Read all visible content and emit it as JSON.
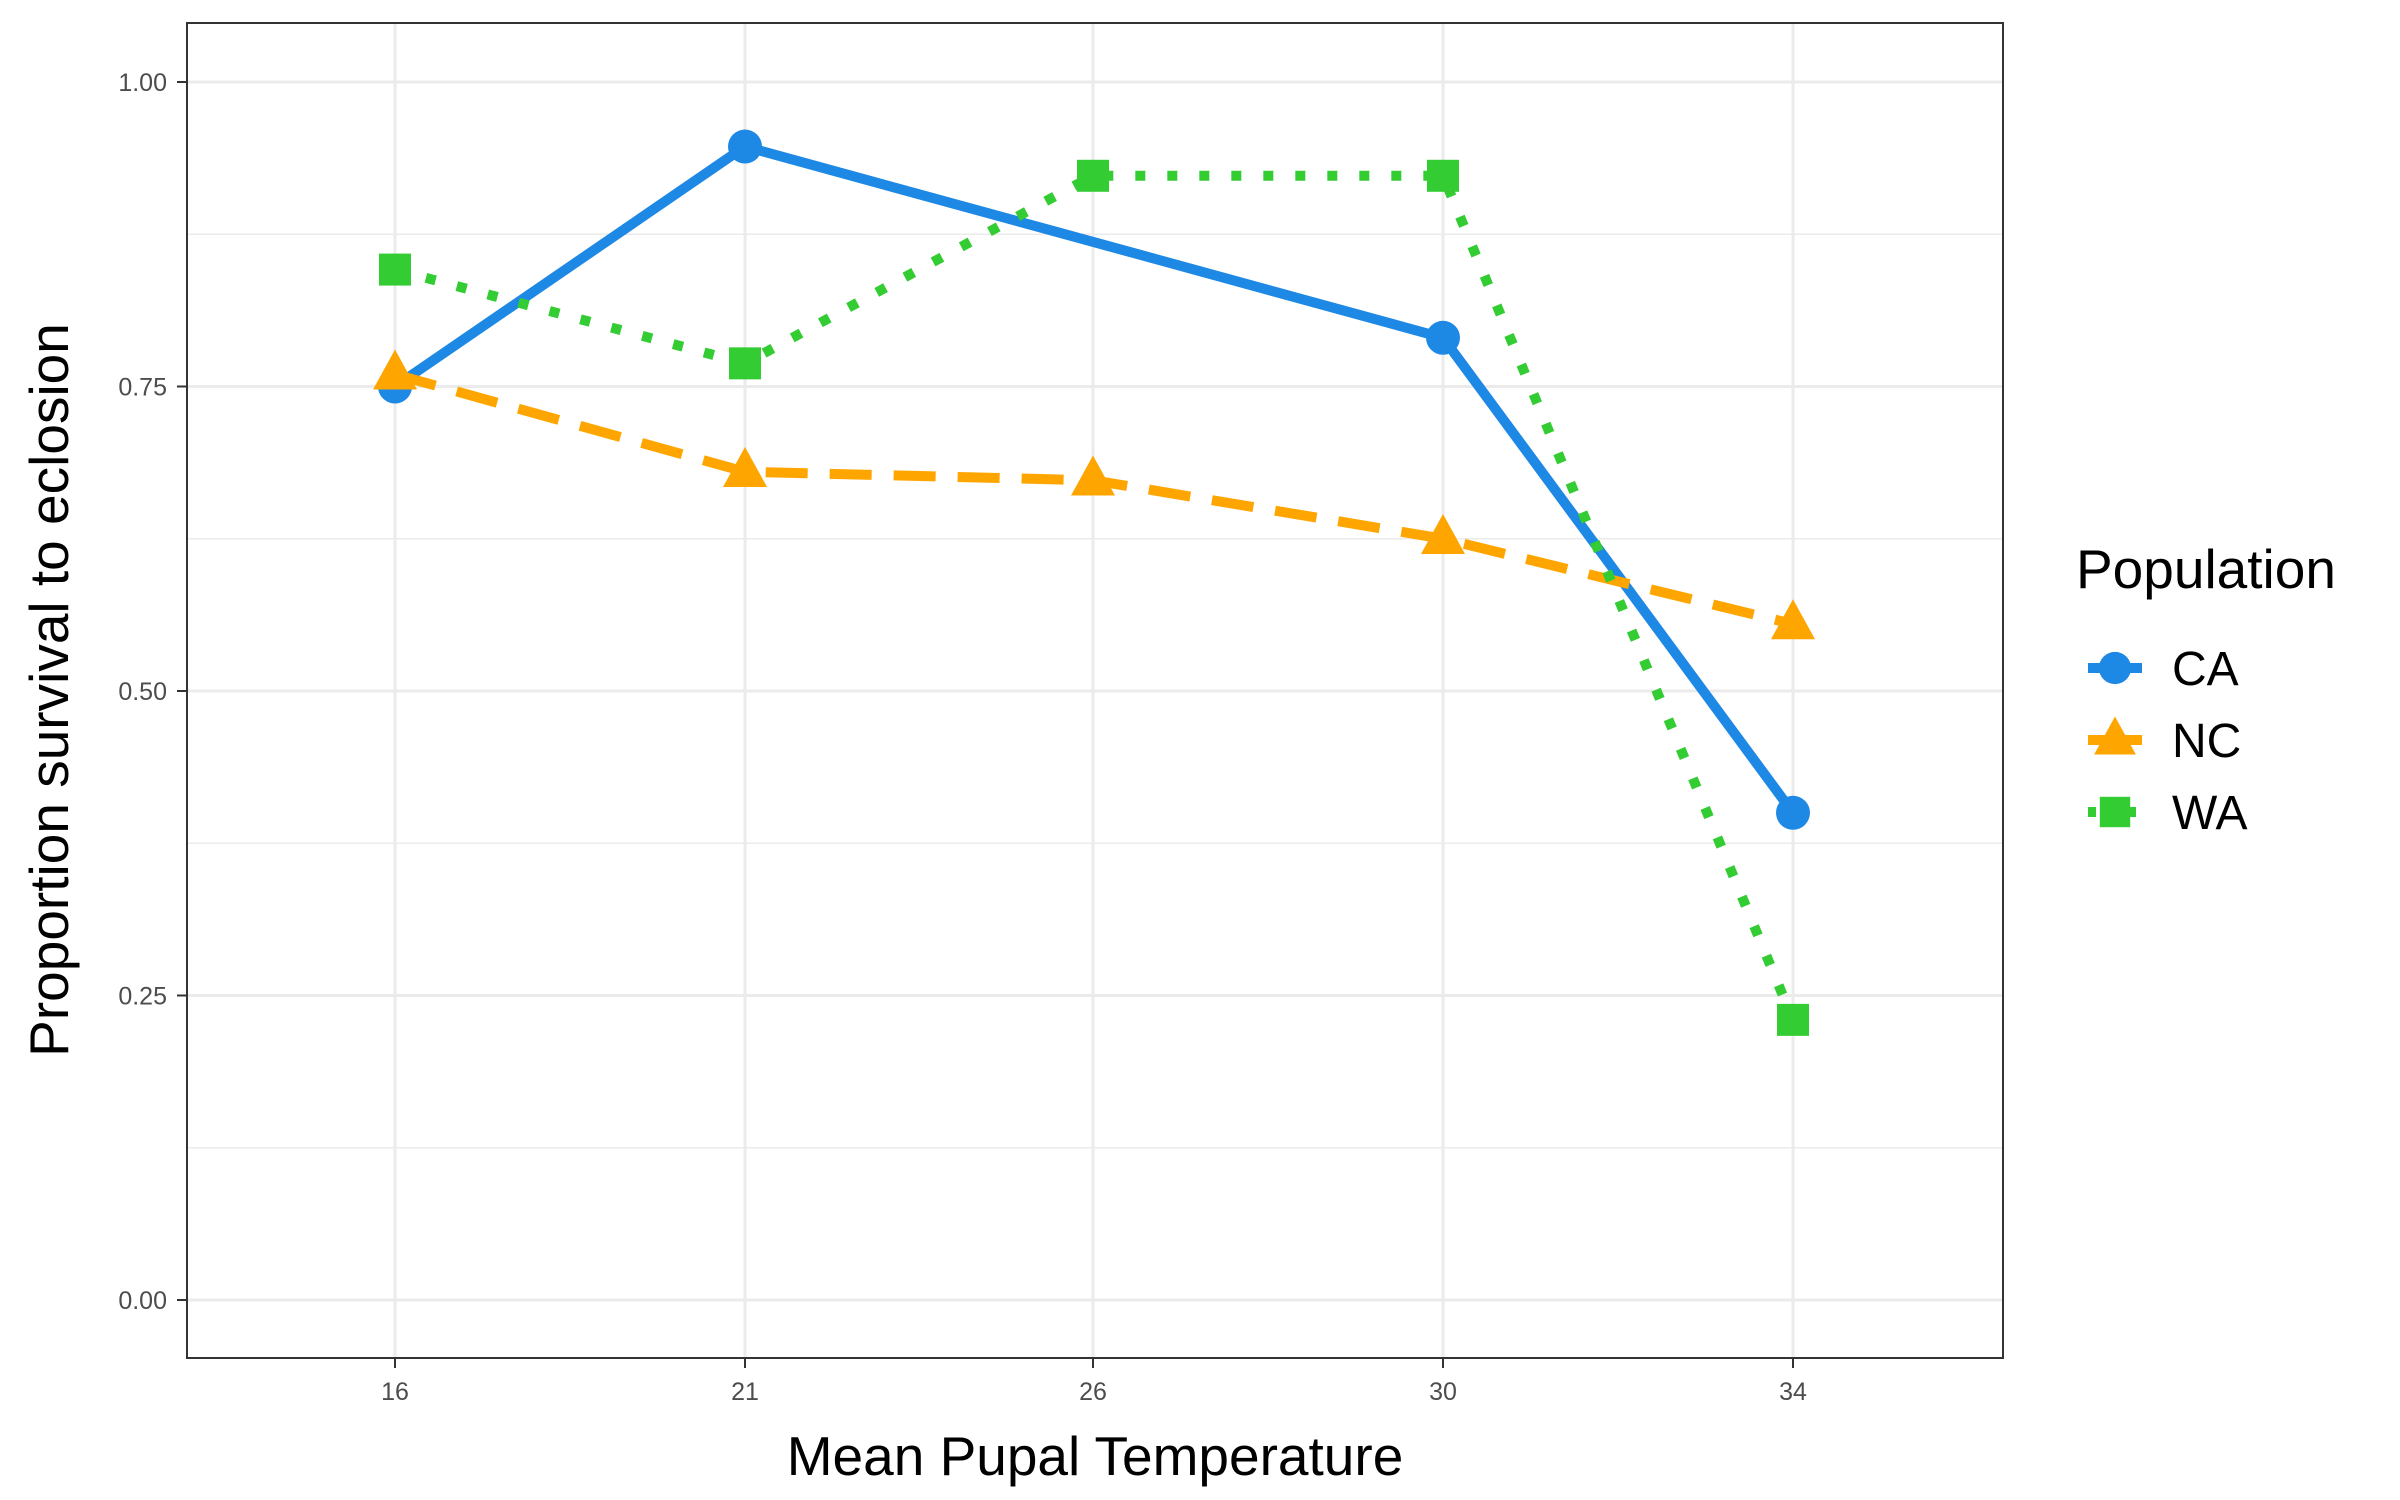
{
  "chart_data": {
    "type": "line",
    "title": "",
    "xlabel": "Mean Pupal Temperature",
    "ylabel": "Proportion survival to eclosion",
    "categories": [
      "16",
      "21",
      "26",
      "30",
      "34"
    ],
    "ylim": [
      -0.04,
      1.04
    ],
    "y_ticks": [
      "0.00",
      "0.25",
      "0.50",
      "0.75",
      "1.00"
    ],
    "y_tick_values": [
      0,
      0.25,
      0.5,
      0.75,
      1.0
    ],
    "grid": true,
    "legend": {
      "title": "Population",
      "position": "right"
    },
    "series": [
      {
        "name": "CA",
        "x": [
          "16",
          "21",
          "30",
          "34"
        ],
        "values": [
          0.75,
          0.947,
          0.79,
          0.4
        ],
        "color": "#1e88e5",
        "linetype": "solid",
        "marker": "circle"
      },
      {
        "name": "NC",
        "x": [
          "16",
          "21",
          "26",
          "30",
          "34"
        ],
        "values": [
          0.76,
          0.68,
          0.673,
          0.625,
          0.555
        ],
        "color": "#ffa500",
        "linetype": "dashed",
        "marker": "triangle"
      },
      {
        "name": "WA",
        "x": [
          "16",
          "21",
          "26",
          "30",
          "34"
        ],
        "values": [
          0.846,
          0.769,
          0.923,
          0.923,
          0.23
        ],
        "color": "#33cc33",
        "linetype": "dotted",
        "marker": "square"
      }
    ]
  }
}
